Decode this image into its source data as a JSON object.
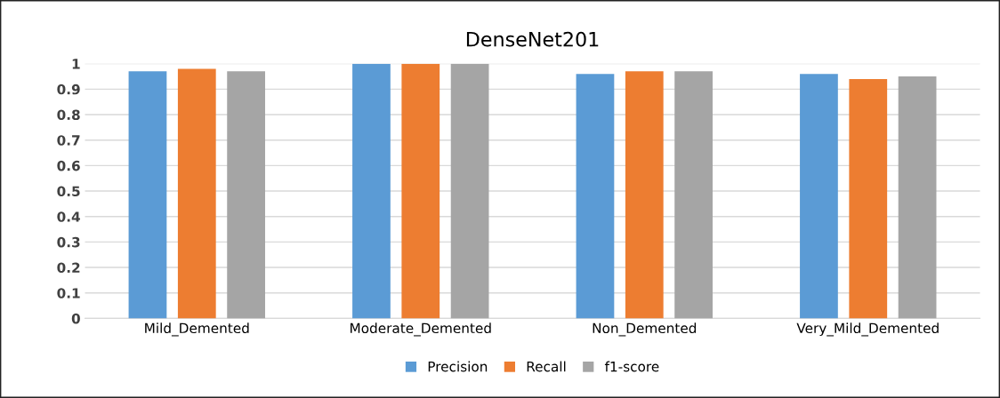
{
  "chart_data": {
    "type": "bar",
    "title": "DenseNet201",
    "categories": [
      "Mild_Demented",
      "Moderate_Demented",
      "Non_Demented",
      "Very_Mild_Demented"
    ],
    "series": [
      {
        "name": "Precision",
        "color": "#5b9bd5",
        "values": [
          0.97,
          1.0,
          0.96,
          0.96
        ]
      },
      {
        "name": "Recall",
        "color": "#ed7d31",
        "values": [
          0.98,
          1.0,
          0.97,
          0.94
        ]
      },
      {
        "name": "f1-score",
        "color": "#a5a5a5",
        "values": [
          0.97,
          1.0,
          0.97,
          0.95
        ]
      }
    ],
    "ylim": [
      0,
      1
    ],
    "yticks": [
      0,
      0.1,
      0.2,
      0.3,
      0.4,
      0.5,
      0.6,
      0.7,
      0.8,
      0.9,
      1
    ],
    "grid": "y",
    "legend": "bottom"
  }
}
